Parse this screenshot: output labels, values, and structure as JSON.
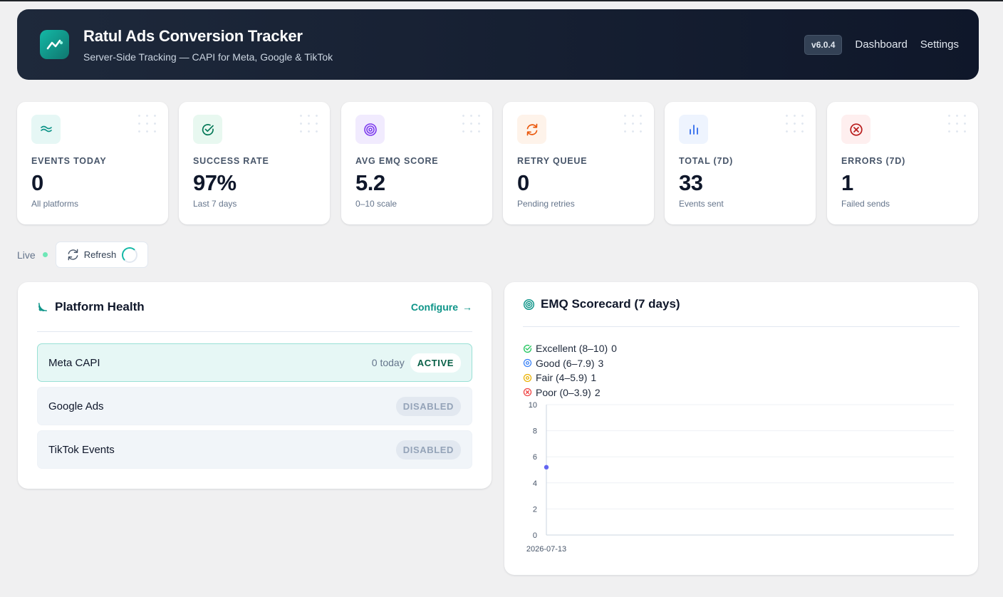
{
  "header": {
    "title": "Ratul Ads Conversion Tracker",
    "subtitle": "Server-Side Tracking — CAPI for Meta, Google & TikTok",
    "version": "v6.0.4",
    "nav": [
      "Dashboard",
      "Settings"
    ]
  },
  "stats": [
    {
      "label": "EVENTS TODAY",
      "value": "0",
      "sub": "All platforms",
      "icon": "waves-icon",
      "icon_bg": "#e6f7f5",
      "icon_color": "#0d9488"
    },
    {
      "label": "SUCCESS RATE",
      "value": "97%",
      "sub": "Last 7 days",
      "icon": "check-circle-icon",
      "icon_bg": "#e8f8f0",
      "icon_color": "#047857"
    },
    {
      "label": "AVG EMQ SCORE",
      "value": "5.2",
      "sub": "0–10 scale",
      "icon": "target-icon",
      "icon_bg": "#f1ebfe",
      "icon_color": "#7c3aed"
    },
    {
      "label": "RETRY QUEUE",
      "value": "0",
      "sub": "Pending retries",
      "icon": "refresh-icon",
      "icon_bg": "#fef3ea",
      "icon_color": "#ea580c"
    },
    {
      "label": "TOTAL (7D)",
      "value": "33",
      "sub": "Events sent",
      "icon": "bar-chart-icon",
      "icon_bg": "#eef4fe",
      "icon_color": "#2563eb"
    },
    {
      "label": "ERRORS (7D)",
      "value": "1",
      "sub": "Failed sends",
      "icon": "x-circle-icon",
      "icon_bg": "#feefef",
      "icon_color": "#b91c1c"
    }
  ],
  "live": {
    "label": "Live",
    "refresh_label": "Refresh"
  },
  "platform_health": {
    "title": "Platform Health",
    "configure_label": "Configure",
    "platforms": [
      {
        "name": "Meta CAPI",
        "count": "0 today",
        "status": "ACTIVE"
      },
      {
        "name": "Google Ads",
        "count": "",
        "status": "DISABLED"
      },
      {
        "name": "TikTok Events",
        "count": "",
        "status": "DISABLED"
      }
    ]
  },
  "emq": {
    "title": "EMQ Scorecard (7 days)",
    "legend": [
      {
        "label": "Excellent (8–10)",
        "count": "0",
        "color": "#22c55e"
      },
      {
        "label": "Good (6–7.9)",
        "count": "3",
        "color": "#3b82f6"
      },
      {
        "label": "Fair (4–5.9)",
        "count": "1",
        "color": "#eab308"
      },
      {
        "label": "Poor (0–3.9)",
        "count": "2",
        "color": "#ef4444"
      }
    ]
  },
  "chart_data": {
    "type": "line",
    "x": [
      "2026-07-13"
    ],
    "series": [
      {
        "values": [
          5.2
        ]
      }
    ],
    "ylim": [
      0,
      10
    ],
    "yticks": [
      0,
      2,
      4,
      6,
      8,
      10
    ],
    "grid": true,
    "series_color": "#6366f1"
  }
}
